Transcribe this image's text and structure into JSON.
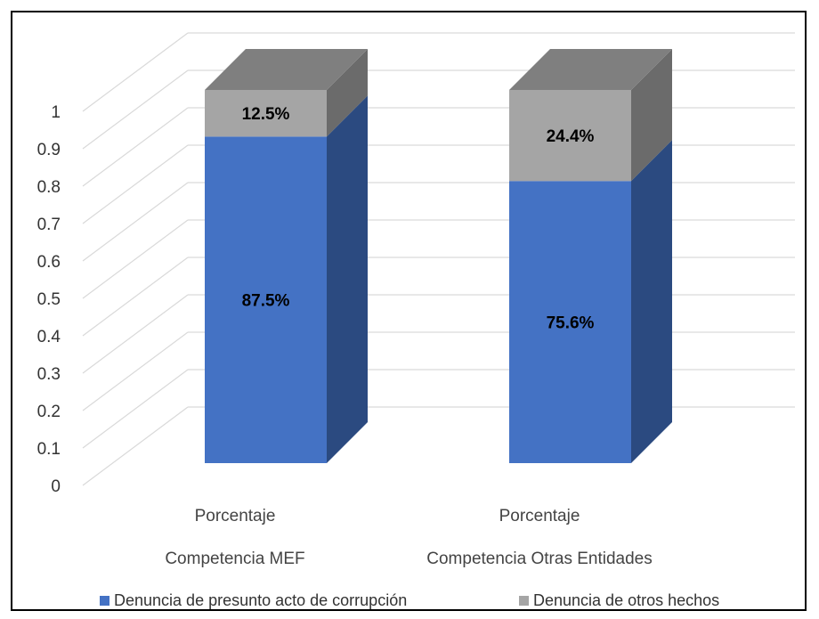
{
  "chart_data": {
    "type": "bar",
    "stacked": true,
    "three_d": true,
    "title": "",
    "xlabel": "",
    "ylabel": "",
    "ylim": [
      0,
      1
    ],
    "yticks": [
      "0",
      "0.1",
      "0.2",
      "0.3",
      "0.4",
      "0.5",
      "0.6",
      "0.7",
      "0.8",
      "0.9",
      "1"
    ],
    "grid": true,
    "legend_position": "bottom",
    "categories": [
      [
        "Porcentaje",
        "Competencia MEF"
      ],
      [
        "Porcentaje",
        "Competencia Otras Entidades"
      ]
    ],
    "series": [
      {
        "name": "Denuncia de presunto acto de corrupción",
        "values": [
          0.875,
          0.756
        ],
        "labels": [
          "87.5%",
          "75.6%"
        ],
        "color": "#4472C4",
        "side_color": "#2B4A80"
      },
      {
        "name": "Denuncia de otros hechos",
        "values": [
          0.125,
          0.244
        ],
        "labels": [
          "12.5%",
          "24.4%"
        ],
        "color": "#A5A5A5",
        "side_color": "#6B6B6B",
        "top_color": "#7F7F7F"
      }
    ]
  }
}
